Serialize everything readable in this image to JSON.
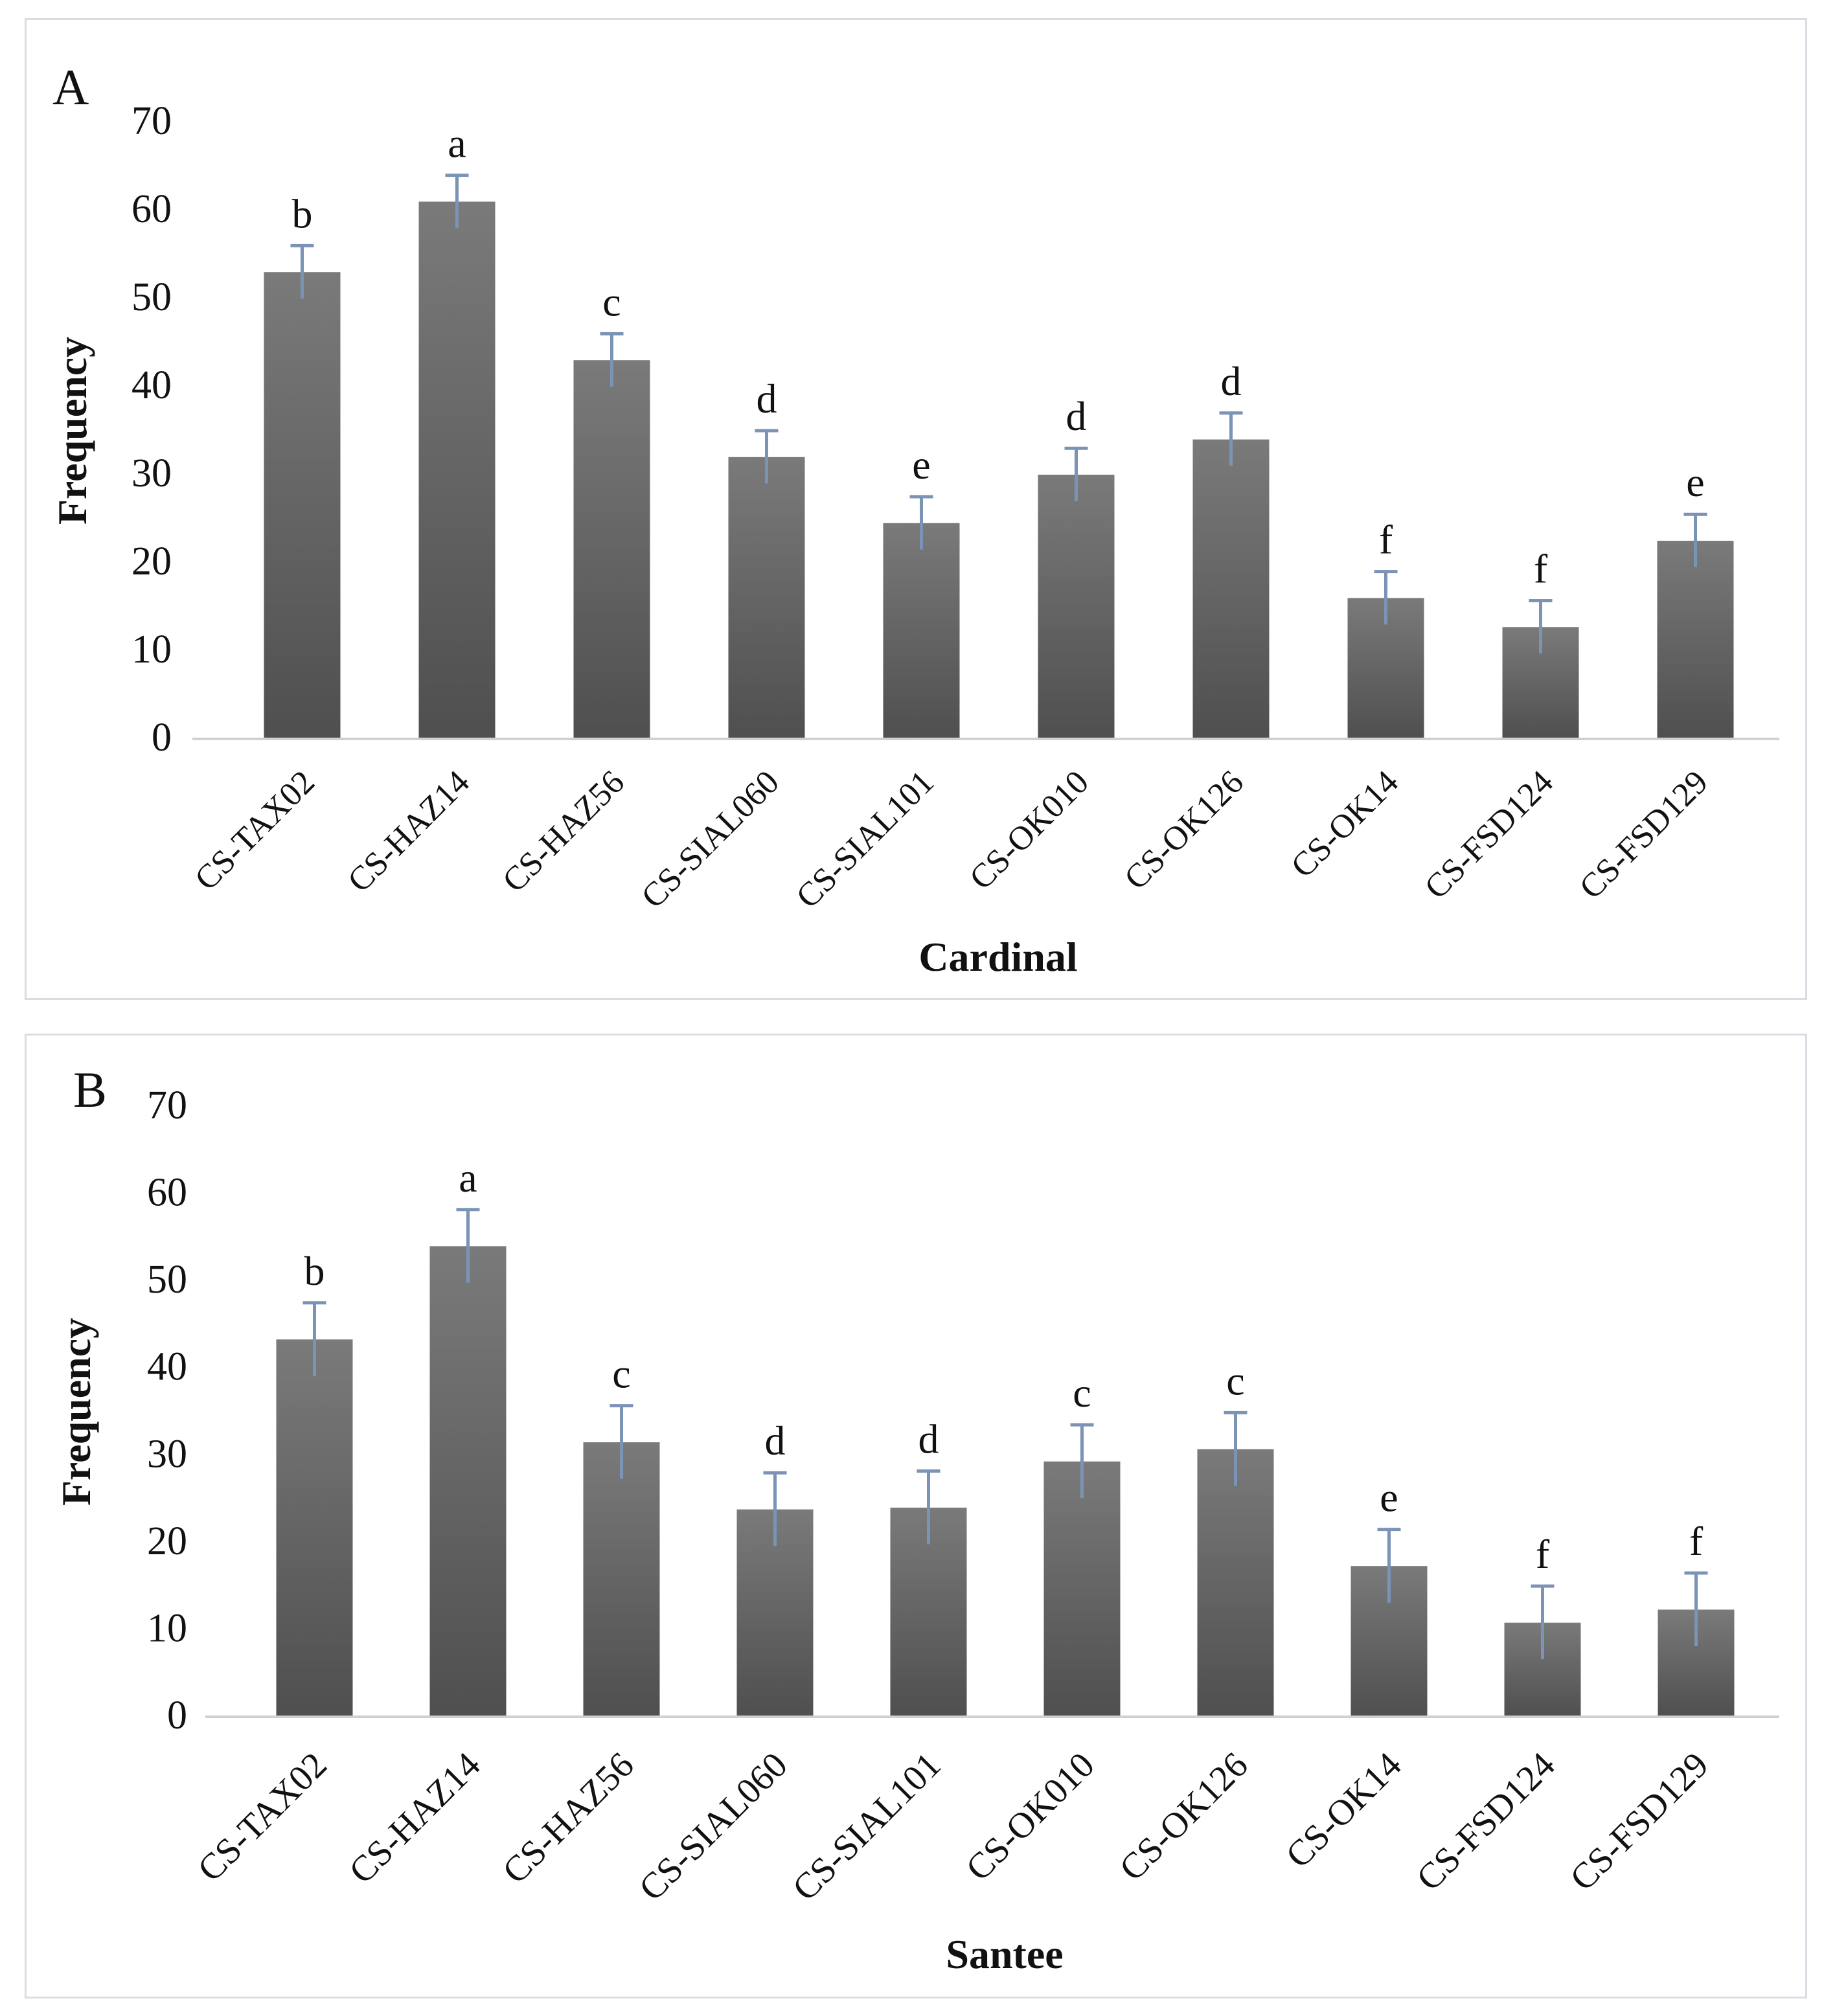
{
  "chart_data": [
    {
      "type": "bar",
      "panel_label": "A",
      "categories": [
        "CS-TAX02",
        "CS-HAZ14",
        "CS-HAZ56",
        "CS-SIAL060",
        "CS-SIAL101",
        "CS-OK010",
        "CS-OK126",
        "CS-OK14",
        "CS-FSD124",
        "CS-FSD129"
      ],
      "values": [
        53,
        61,
        43,
        32,
        24.5,
        30,
        34,
        16,
        12.7,
        22.5
      ],
      "errors": [
        3,
        3,
        3,
        3,
        3,
        3,
        3,
        3,
        3,
        3
      ],
      "letters": [
        "b",
        "a",
        "c",
        "d",
        "e",
        "d",
        "d",
        "f",
        "f",
        "e"
      ],
      "xlabel": "Cardinal",
      "ylabel": "Frequency",
      "ylim": [
        0,
        70
      ],
      "yticks": [
        "0",
        "10",
        "20",
        "30",
        "40",
        "50",
        "60",
        "70"
      ],
      "grid": false,
      "bar_color": "#5e5e5e"
    },
    {
      "type": "bar",
      "panel_label": "B",
      "categories": [
        "CS-TAX02",
        "CS-HAZ14",
        "CS-HAZ56",
        "CS-SIAL060",
        "CS-SIAL101",
        "CS-OK010",
        "CS-OK126",
        "CS-OK14",
        "CS-FSD124",
        "CS-FSD129"
      ],
      "values": [
        43.3,
        54,
        31.5,
        23.8,
        24,
        29.3,
        30.7,
        17.3,
        10.8,
        12.3
      ],
      "errors": [
        4.2,
        4.2,
        4.2,
        4.2,
        4.2,
        4.2,
        4.2,
        4.2,
        4.2,
        4.2
      ],
      "letters": [
        "b",
        "a",
        "c",
        "d",
        "d",
        "c",
        "c",
        "e",
        "f",
        "f"
      ],
      "xlabel": "Santee",
      "ylabel": "Frequency",
      "ylim": [
        0,
        70
      ],
      "yticks": [
        "0",
        "10",
        "20",
        "30",
        "40",
        "50",
        "60",
        "70"
      ],
      "grid": false,
      "bar_color": "#5e5e5e"
    }
  ]
}
